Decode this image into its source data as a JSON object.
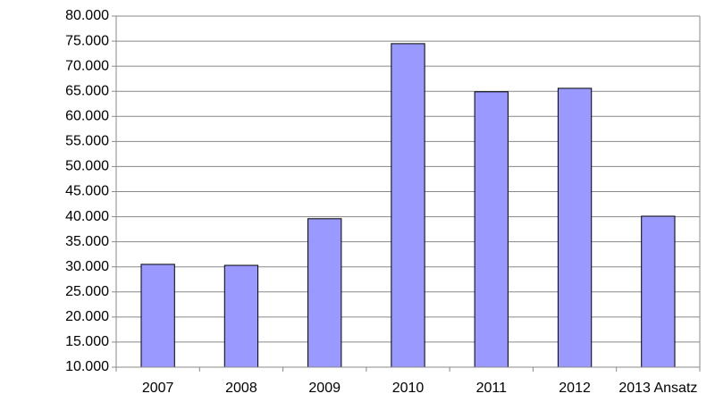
{
  "chart_data": {
    "type": "bar",
    "categories": [
      "2007",
      "2008",
      "2009",
      "2010",
      "2011",
      "2012",
      "2013 Ansatz"
    ],
    "values": [
      30500,
      30300,
      39600,
      74500,
      64900,
      65600,
      40100
    ],
    "color": "#9999ff",
    "ylim": [
      10000,
      80000
    ],
    "yticks": [
      {
        "value": 10000,
        "label": "10.000"
      },
      {
        "value": 15000,
        "label": "15.000"
      },
      {
        "value": 20000,
        "label": "20.000"
      },
      {
        "value": 25000,
        "label": "25.000"
      },
      {
        "value": 30000,
        "label": "30.000"
      },
      {
        "value": 35000,
        "label": "35.000"
      },
      {
        "value": 40000,
        "label": "40.000"
      },
      {
        "value": 45000,
        "label": "45.000"
      },
      {
        "value": 50000,
        "label": "50.000"
      },
      {
        "value": 55000,
        "label": "55.000"
      },
      {
        "value": 60000,
        "label": "60.000"
      },
      {
        "value": 65000,
        "label": "65.000"
      },
      {
        "value": 70000,
        "label": "70.000"
      },
      {
        "value": 75000,
        "label": "75.000"
      },
      {
        "value": 80000,
        "label": "80.000"
      }
    ],
    "grid": true
  }
}
